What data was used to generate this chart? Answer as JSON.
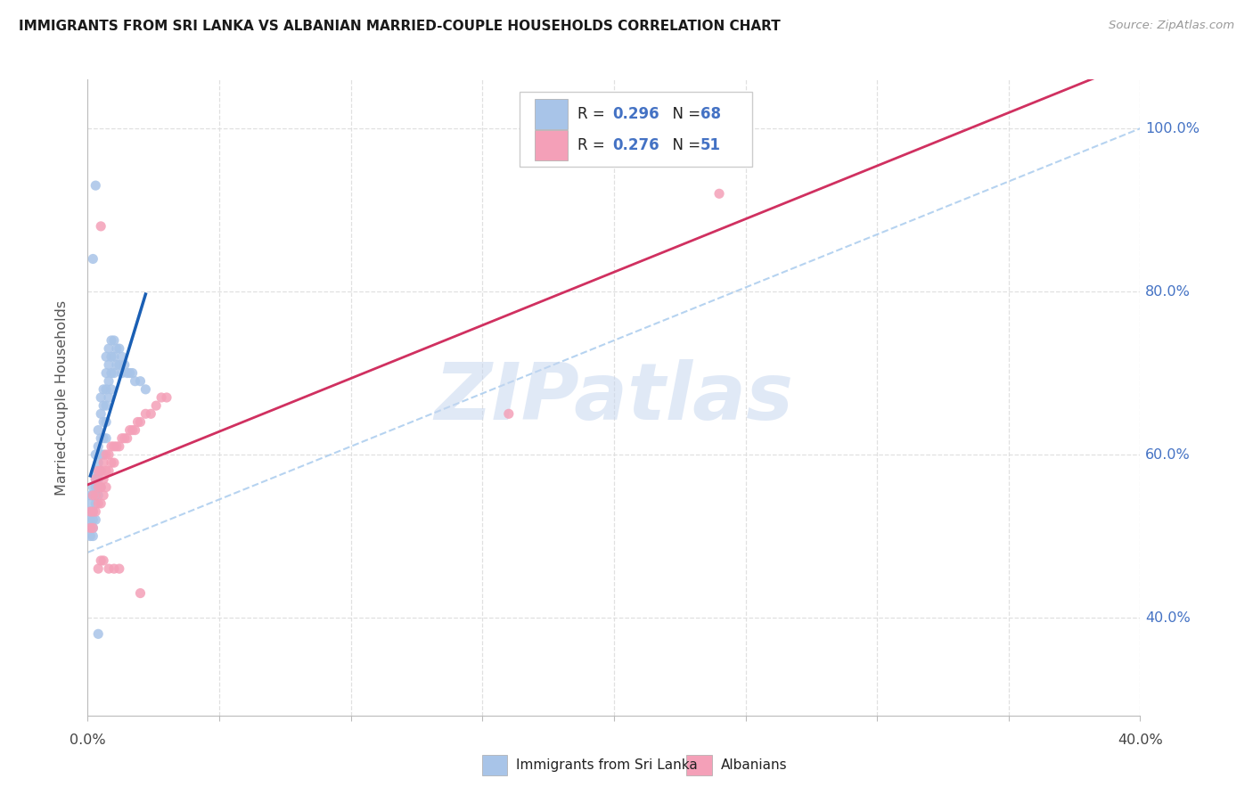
{
  "title": "IMMIGRANTS FROM SRI LANKA VS ALBANIAN MARRIED-COUPLE HOUSEHOLDS CORRELATION CHART",
  "source": "Source: ZipAtlas.com",
  "ylabel": "Married-couple Households",
  "ytick_vals": [
    0.4,
    0.6,
    0.8,
    1.0
  ],
  "ytick_labels": [
    "40.0%",
    "60.0%",
    "80.0%",
    "100.0%"
  ],
  "xlim": [
    0.0,
    0.4
  ],
  "ylim": [
    0.28,
    1.06
  ],
  "legend_r1": "R = 0.296",
  "legend_n1": "N = 68",
  "legend_r2": "R = 0.276",
  "legend_n2": "N = 51",
  "blue_scatter_color": "#a8c4e8",
  "pink_scatter_color": "#f4a0b8",
  "blue_line_color": "#1a5fb4",
  "pink_line_color": "#d03060",
  "diag_color": "#aaccee",
  "grid_color": "#e0e0e0",
  "watermark_color": "#c8d8f0",
  "watermark_text": "ZIPatlas",
  "label_blue": "Immigrants from Sri Lanka",
  "label_pink": "Albanians",
  "blue_R": 0.296,
  "pink_R": 0.276,
  "blue_N": 68,
  "pink_N": 51,
  "blue_scatter_x": [
    0.001,
    0.001,
    0.001,
    0.001,
    0.001,
    0.001,
    0.002,
    0.002,
    0.002,
    0.002,
    0.002,
    0.002,
    0.003,
    0.003,
    0.003,
    0.003,
    0.003,
    0.003,
    0.003,
    0.004,
    0.004,
    0.004,
    0.004,
    0.004,
    0.005,
    0.005,
    0.005,
    0.005,
    0.005,
    0.005,
    0.006,
    0.006,
    0.006,
    0.006,
    0.006,
    0.007,
    0.007,
    0.007,
    0.007,
    0.007,
    0.007,
    0.008,
    0.008,
    0.008,
    0.008,
    0.009,
    0.009,
    0.009,
    0.009,
    0.01,
    0.01,
    0.01,
    0.011,
    0.011,
    0.012,
    0.012,
    0.013,
    0.013,
    0.014,
    0.015,
    0.016,
    0.017,
    0.018,
    0.02,
    0.022,
    0.003,
    0.002,
    0.004
  ],
  "blue_scatter_y": [
    0.55,
    0.54,
    0.53,
    0.52,
    0.51,
    0.5,
    0.56,
    0.55,
    0.53,
    0.52,
    0.51,
    0.5,
    0.6,
    0.58,
    0.57,
    0.56,
    0.55,
    0.54,
    0.52,
    0.63,
    0.61,
    0.59,
    0.57,
    0.55,
    0.67,
    0.65,
    0.62,
    0.6,
    0.58,
    0.56,
    0.68,
    0.66,
    0.64,
    0.62,
    0.6,
    0.72,
    0.7,
    0.68,
    0.66,
    0.64,
    0.62,
    0.73,
    0.71,
    0.69,
    0.67,
    0.74,
    0.72,
    0.7,
    0.68,
    0.74,
    0.72,
    0.7,
    0.73,
    0.71,
    0.73,
    0.71,
    0.72,
    0.7,
    0.71,
    0.7,
    0.7,
    0.7,
    0.69,
    0.69,
    0.68,
    0.93,
    0.84,
    0.38
  ],
  "pink_scatter_x": [
    0.001,
    0.001,
    0.002,
    0.002,
    0.002,
    0.003,
    0.003,
    0.003,
    0.004,
    0.004,
    0.004,
    0.005,
    0.005,
    0.005,
    0.006,
    0.006,
    0.006,
    0.007,
    0.007,
    0.007,
    0.008,
    0.008,
    0.009,
    0.009,
    0.01,
    0.01,
    0.011,
    0.012,
    0.013,
    0.014,
    0.015,
    0.016,
    0.017,
    0.018,
    0.019,
    0.02,
    0.022,
    0.024,
    0.026,
    0.028,
    0.03,
    0.004,
    0.005,
    0.006,
    0.008,
    0.01,
    0.012,
    0.24,
    0.16,
    0.005,
    0.02
  ],
  "pink_scatter_y": [
    0.53,
    0.51,
    0.55,
    0.53,
    0.51,
    0.57,
    0.55,
    0.53,
    0.58,
    0.56,
    0.54,
    0.58,
    0.56,
    0.54,
    0.59,
    0.57,
    0.55,
    0.6,
    0.58,
    0.56,
    0.6,
    0.58,
    0.61,
    0.59,
    0.61,
    0.59,
    0.61,
    0.61,
    0.62,
    0.62,
    0.62,
    0.63,
    0.63,
    0.63,
    0.64,
    0.64,
    0.65,
    0.65,
    0.66,
    0.67,
    0.67,
    0.46,
    0.47,
    0.47,
    0.46,
    0.46,
    0.46,
    0.92,
    0.65,
    0.88,
    0.43
  ]
}
